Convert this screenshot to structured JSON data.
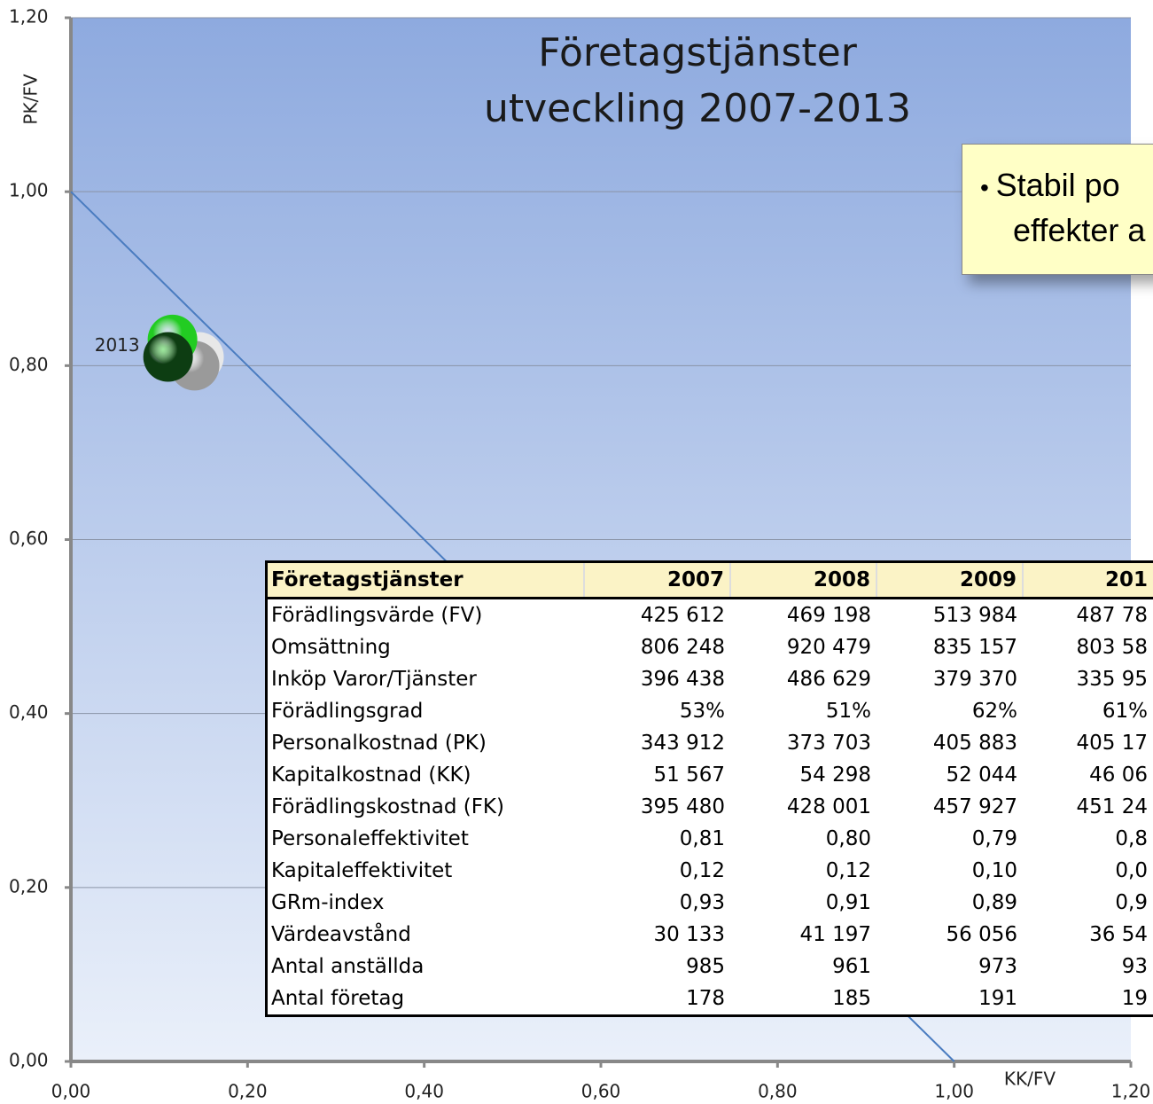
{
  "chart_data": {
    "type": "scatter",
    "title": "Företagstjänster utveckling 2007-2013",
    "x_label": "KK/FV",
    "y_label": "PK/FV",
    "xlim": [
      0,
      1.2
    ],
    "ylim": [
      0,
      1.2
    ],
    "xticks": [
      {
        "value": 0,
        "label": "0,00"
      },
      {
        "value": 0.2,
        "label": "0,20"
      },
      {
        "value": 0.4,
        "label": "0,40"
      },
      {
        "value": 0.6,
        "label": "0,60"
      },
      {
        "value": 0.8,
        "label": "0,80"
      },
      {
        "value": 1,
        "label": "1,00"
      },
      {
        "value": 1.2,
        "label": "1,20"
      }
    ],
    "yticks": [
      {
        "value": 0,
        "label": "0,00"
      },
      {
        "value": 0.2,
        "label": "0,20"
      },
      {
        "value": 0.4,
        "label": "0,40"
      },
      {
        "value": 0.6,
        "label": "0,60"
      },
      {
        "value": 0.8,
        "label": "0,80"
      },
      {
        "value": 1,
        "label": "1,00"
      },
      {
        "value": 1.2,
        "label": "1,20"
      }
    ],
    "grid": true,
    "points": {
      "x": [
        0.145,
        0.14,
        0.115,
        0.11
      ],
      "y": [
        0.81,
        0.8,
        0.83,
        0.81
      ],
      "colors": [
        "#e8e8e8",
        "#9a9a9a",
        "#22cc22",
        "#0d3d12"
      ],
      "labels": [
        null,
        null,
        null,
        "2013"
      ]
    },
    "reference_line": {
      "x": [
        0,
        1
      ],
      "y": [
        1,
        0
      ],
      "color": "#4a7cc0"
    }
  },
  "note": {
    "lines": [
      "Stabil po",
      "effekter a"
    ]
  },
  "table": {
    "header": [
      "Företagstjänster",
      "2007",
      "2008",
      "2009",
      "201"
    ],
    "rows": [
      [
        "Förädlingsvärde (FV)",
        "425 612",
        "469 198",
        "513 984",
        "487 78"
      ],
      [
        "Omsättning",
        "806 248",
        "920 479",
        "835 157",
        "803 58"
      ],
      [
        "Inköp Varor/Tjänster",
        "396 438",
        "486 629",
        "379 370",
        "335 95"
      ],
      [
        "Förädlingsgrad",
        "53%",
        "51%",
        "62%",
        "61%"
      ],
      [
        "Personalkostnad (PK)",
        "343 912",
        "373 703",
        "405 883",
        "405 17"
      ],
      [
        "Kapitalkostnad (KK)",
        "51 567",
        "54 298",
        "52 044",
        "46 06"
      ],
      [
        "Förädlingskostnad (FK)",
        "395 480",
        "428 001",
        "457 927",
        "451 24"
      ],
      [
        "Personaleffektivitet",
        "0,81",
        "0,80",
        "0,79",
        "0,8"
      ],
      [
        "Kapitaleffektivitet",
        "0,12",
        "0,12",
        "0,10",
        "0,0"
      ],
      [
        "GRm-index",
        "0,93",
        "0,91",
        "0,89",
        "0,9"
      ],
      [
        "Värdeavstånd",
        "30 133",
        "41 197",
        "56 056",
        "36 54"
      ],
      [
        "Antal anställda",
        "985",
        "961",
        "973",
        "93"
      ],
      [
        "Antal företag",
        "178",
        "185",
        "191",
        "19"
      ]
    ]
  }
}
